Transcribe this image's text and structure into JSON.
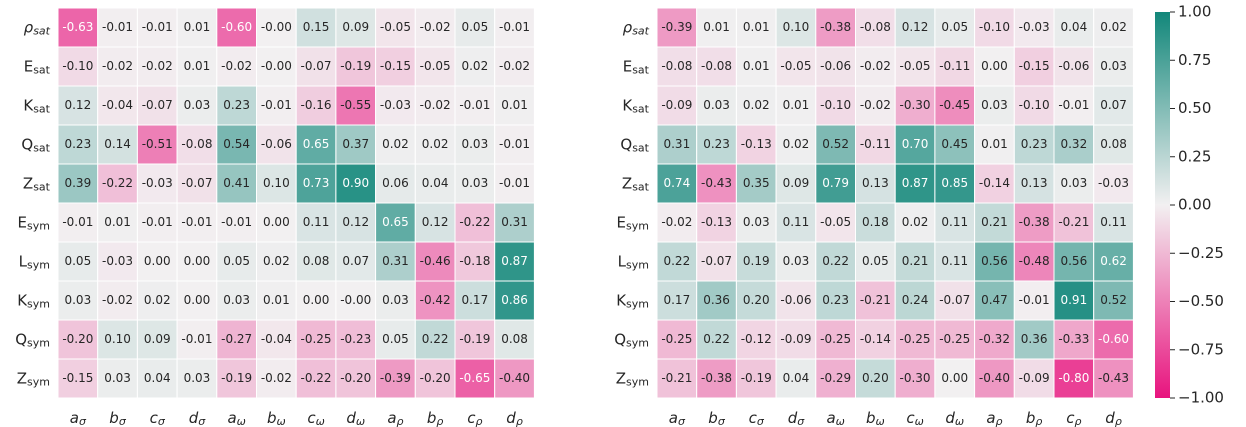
{
  "chart_data": [
    {
      "type": "heatmap",
      "rows": [
        {
          "symbol": "ρ",
          "subscript": "sat"
        },
        {
          "symbol": "E",
          "subscript": "sat"
        },
        {
          "symbol": "K",
          "subscript": "sat"
        },
        {
          "symbol": "Q",
          "subscript": "sat"
        },
        {
          "symbol": "Z",
          "subscript": "sat"
        },
        {
          "symbol": "E",
          "subscript": "sym"
        },
        {
          "symbol": "L",
          "subscript": "sym"
        },
        {
          "symbol": "K",
          "subscript": "sym"
        },
        {
          "symbol": "Q",
          "subscript": "sym"
        },
        {
          "symbol": "Z",
          "subscript": "sym"
        }
      ],
      "columns": [
        {
          "symbol": "a",
          "subscript": "σ"
        },
        {
          "symbol": "b",
          "subscript": "σ"
        },
        {
          "symbol": "c",
          "subscript": "σ"
        },
        {
          "symbol": "d",
          "subscript": "σ"
        },
        {
          "symbol": "a",
          "subscript": "ω"
        },
        {
          "symbol": "b",
          "subscript": "ω"
        },
        {
          "symbol": "c",
          "subscript": "ω"
        },
        {
          "symbol": "d",
          "subscript": "ω"
        },
        {
          "symbol": "a",
          "subscript": "ρ"
        },
        {
          "symbol": "b",
          "subscript": "ρ"
        },
        {
          "symbol": "c",
          "subscript": "ρ"
        },
        {
          "symbol": "d",
          "subscript": "ρ"
        }
      ],
      "values": [
        [
          -0.63,
          -0.01,
          -0.01,
          0.01,
          -0.6,
          0,
          0.15,
          0.09,
          -0.05,
          -0.02,
          0.05,
          -0.01
        ],
        [
          -0.1,
          -0.02,
          -0.02,
          0.01,
          -0.02,
          0,
          -0.07,
          -0.19,
          -0.15,
          -0.05,
          0.02,
          -0.02
        ],
        [
          0.12,
          -0.04,
          -0.07,
          0.03,
          0.23,
          -0.01,
          -0.16,
          -0.55,
          -0.03,
          -0.02,
          -0.01,
          0.01
        ],
        [
          0.23,
          0.14,
          -0.51,
          -0.08,
          0.54,
          -0.06,
          0.65,
          0.37,
          0.02,
          0.02,
          0.03,
          -0.01
        ],
        [
          0.39,
          -0.22,
          -0.03,
          -0.07,
          0.41,
          0.1,
          0.73,
          0.9,
          0.06,
          0.04,
          0.03,
          -0.01
        ],
        [
          -0.01,
          0.01,
          -0.01,
          -0.01,
          -0.01,
          0,
          0.11,
          0.12,
          0.65,
          0.12,
          -0.22,
          0.31
        ],
        [
          0.05,
          -0.03,
          0,
          0,
          0.05,
          0.02,
          0.08,
          0.07,
          0.31,
          -0.46,
          -0.18,
          0.87
        ],
        [
          0.03,
          -0.02,
          0.02,
          0,
          0.03,
          0.01,
          0,
          0,
          0.03,
          -0.42,
          0.17,
          0.86
        ],
        [
          -0.2,
          0.1,
          0.09,
          -0.01,
          -0.27,
          -0.04,
          -0.25,
          -0.23,
          0.05,
          0.22,
          -0.19,
          0.08
        ],
        [
          -0.15,
          0.03,
          0.04,
          0.03,
          -0.19,
          -0.02,
          -0.22,
          -0.2,
          -0.39,
          -0.2,
          -0.65,
          -0.4
        ]
      ],
      "value_labels": [
        [
          "-0.63",
          "-0.01",
          "-0.01",
          "0.01",
          "-0.60",
          "-0.00",
          "0.15",
          "0.09",
          "-0.05",
          "-0.02",
          "0.05",
          "-0.01"
        ],
        [
          "-0.10",
          "-0.02",
          "-0.02",
          "0.01",
          "-0.02",
          "-0.00",
          "-0.07",
          "-0.19",
          "-0.15",
          "-0.05",
          "0.02",
          "-0.02"
        ],
        [
          "0.12",
          "-0.04",
          "-0.07",
          "0.03",
          "0.23",
          "-0.01",
          "-0.16",
          "-0.55",
          "-0.03",
          "-0.02",
          "-0.01",
          "0.01"
        ],
        [
          "0.23",
          "0.14",
          "-0.51",
          "-0.08",
          "0.54",
          "-0.06",
          "0.65",
          "0.37",
          "0.02",
          "0.02",
          "0.03",
          "-0.01"
        ],
        [
          "0.39",
          "-0.22",
          "-0.03",
          "-0.07",
          "0.41",
          "0.10",
          "0.73",
          "0.90",
          "0.06",
          "0.04",
          "0.03",
          "-0.01"
        ],
        [
          "-0.01",
          "0.01",
          "-0.01",
          "-0.01",
          "-0.01",
          "0.00",
          "0.11",
          "0.12",
          "0.65",
          "0.12",
          "-0.22",
          "0.31"
        ],
        [
          "0.05",
          "-0.03",
          "0.00",
          "0.00",
          "0.05",
          "0.02",
          "0.08",
          "0.07",
          "0.31",
          "-0.46",
          "-0.18",
          "0.87"
        ],
        [
          "0.03",
          "-0.02",
          "0.02",
          "0.00",
          "0.03",
          "0.01",
          "0.00",
          "-0.00",
          "0.03",
          "-0.42",
          "0.17",
          "0.86"
        ],
        [
          "-0.20",
          "0.10",
          "0.09",
          "-0.01",
          "-0.27",
          "-0.04",
          "-0.25",
          "-0.23",
          "0.05",
          "0.22",
          "-0.19",
          "0.08"
        ],
        [
          "-0.15",
          "0.03",
          "0.04",
          "0.03",
          "-0.19",
          "-0.02",
          "-0.22",
          "-0.20",
          "-0.39",
          "-0.20",
          "-0.65",
          "-0.40"
        ]
      ]
    },
    {
      "type": "heatmap",
      "rows": [
        {
          "symbol": "ρ",
          "subscript": "sat"
        },
        {
          "symbol": "E",
          "subscript": "sat"
        },
        {
          "symbol": "K",
          "subscript": "sat"
        },
        {
          "symbol": "Q",
          "subscript": "sat"
        },
        {
          "symbol": "Z",
          "subscript": "sat"
        },
        {
          "symbol": "E",
          "subscript": "sym"
        },
        {
          "symbol": "L",
          "subscript": "sym"
        },
        {
          "symbol": "K",
          "subscript": "sym"
        },
        {
          "symbol": "Q",
          "subscript": "sym"
        },
        {
          "symbol": "Z",
          "subscript": "sym"
        }
      ],
      "columns": [
        {
          "symbol": "a",
          "subscript": "σ"
        },
        {
          "symbol": "b",
          "subscript": "σ"
        },
        {
          "symbol": "c",
          "subscript": "σ"
        },
        {
          "symbol": "d",
          "subscript": "σ"
        },
        {
          "symbol": "a",
          "subscript": "ω"
        },
        {
          "symbol": "b",
          "subscript": "ω"
        },
        {
          "symbol": "c",
          "subscript": "ω"
        },
        {
          "symbol": "d",
          "subscript": "ω"
        },
        {
          "symbol": "a",
          "subscript": "ρ"
        },
        {
          "symbol": "b",
          "subscript": "ρ"
        },
        {
          "symbol": "c",
          "subscript": "ρ"
        },
        {
          "symbol": "d",
          "subscript": "ρ"
        }
      ],
      "values": [
        [
          -0.39,
          0.01,
          0.01,
          0.1,
          -0.38,
          -0.08,
          0.12,
          0.05,
          -0.1,
          -0.03,
          0.04,
          0.02
        ],
        [
          -0.08,
          -0.08,
          0.01,
          -0.05,
          -0.06,
          -0.02,
          -0.05,
          -0.11,
          0,
          -0.15,
          -0.06,
          0.03
        ],
        [
          -0.09,
          0.03,
          0.02,
          0.01,
          -0.1,
          -0.02,
          -0.3,
          -0.45,
          0.03,
          -0.1,
          -0.01,
          0.07
        ],
        [
          0.31,
          0.23,
          -0.13,
          0.02,
          0.52,
          -0.11,
          0.7,
          0.45,
          0.01,
          0.23,
          0.32,
          0.08
        ],
        [
          0.74,
          -0.43,
          0.35,
          0.09,
          0.79,
          0.13,
          0.87,
          0.85,
          -0.14,
          0.13,
          0.03,
          -0.03
        ],
        [
          -0.02,
          -0.13,
          0.03,
          0.11,
          -0.05,
          0.18,
          0.02,
          0.11,
          0.21,
          -0.38,
          -0.21,
          0.11
        ],
        [
          0.22,
          -0.07,
          0.19,
          0.03,
          0.22,
          0.05,
          0.21,
          0.11,
          0.56,
          -0.48,
          0.56,
          0.62
        ],
        [
          0.17,
          0.36,
          0.2,
          -0.06,
          0.23,
          -0.21,
          0.24,
          -0.07,
          0.47,
          -0.01,
          0.91,
          0.52
        ],
        [
          -0.25,
          0.22,
          -0.12,
          -0.09,
          -0.25,
          -0.14,
          -0.25,
          -0.25,
          -0.32,
          0.36,
          -0.33,
          -0.6
        ],
        [
          -0.21,
          -0.38,
          -0.19,
          0.04,
          -0.29,
          0.2,
          -0.3,
          0,
          -0.4,
          -0.09,
          -0.8,
          -0.43
        ]
      ],
      "value_labels": [
        [
          "-0.39",
          "0.01",
          "0.01",
          "0.10",
          "-0.38",
          "-0.08",
          "0.12",
          "0.05",
          "-0.10",
          "-0.03",
          "0.04",
          "0.02"
        ],
        [
          "-0.08",
          "-0.08",
          "0.01",
          "-0.05",
          "-0.06",
          "-0.02",
          "-0.05",
          "-0.11",
          "0.00",
          "-0.15",
          "-0.06",
          "0.03"
        ],
        [
          "-0.09",
          "0.03",
          "0.02",
          "0.01",
          "-0.10",
          "-0.02",
          "-0.30",
          "-0.45",
          "0.03",
          "-0.10",
          "-0.01",
          "0.07"
        ],
        [
          "0.31",
          "0.23",
          "-0.13",
          "0.02",
          "0.52",
          "-0.11",
          "0.70",
          "0.45",
          "0.01",
          "0.23",
          "0.32",
          "0.08"
        ],
        [
          "0.74",
          "-0.43",
          "0.35",
          "0.09",
          "0.79",
          "0.13",
          "0.87",
          "0.85",
          "-0.14",
          "0.13",
          "0.03",
          "-0.03"
        ],
        [
          "-0.02",
          "-0.13",
          "0.03",
          "0.11",
          "-0.05",
          "0.18",
          "0.02",
          "0.11",
          "0.21",
          "-0.38",
          "-0.21",
          "0.11"
        ],
        [
          "0.22",
          "-0.07",
          "0.19",
          "0.03",
          "0.22",
          "0.05",
          "0.21",
          "0.11",
          "0.56",
          "-0.48",
          "0.56",
          "0.62"
        ],
        [
          "0.17",
          "0.36",
          "0.20",
          "-0.06",
          "0.23",
          "-0.21",
          "0.24",
          "-0.07",
          "0.47",
          "-0.01",
          "0.91",
          "0.52"
        ],
        [
          "-0.25",
          "0.22",
          "-0.12",
          "-0.09",
          "-0.25",
          "-0.14",
          "-0.25",
          "-0.25",
          "-0.32",
          "0.36",
          "-0.33",
          "-0.60"
        ],
        [
          "-0.21",
          "-0.38",
          "-0.19",
          "0.04",
          "-0.29",
          "0.20",
          "-0.30",
          "0.00",
          "-0.40",
          "-0.09",
          "-0.80",
          "-0.43"
        ]
      ]
    }
  ],
  "colorbar": {
    "lim": [
      -1,
      1
    ],
    "colors": [
      "#e8137e",
      "#f2f0f1",
      "#12877a"
    ],
    "ticks": [
      {
        "value": 1,
        "label": "1.00"
      },
      {
        "value": 0.75,
        "label": "0.75"
      },
      {
        "value": 0.5,
        "label": "0.50"
      },
      {
        "value": 0.25,
        "label": "0.25"
      },
      {
        "value": 0,
        "label": "0.00"
      },
      {
        "value": -0.25,
        "label": "−0.25"
      },
      {
        "value": -0.5,
        "label": "−0.50"
      },
      {
        "value": -0.75,
        "label": "−0.75"
      },
      {
        "value": -1,
        "label": "−1.00"
      }
    ]
  }
}
